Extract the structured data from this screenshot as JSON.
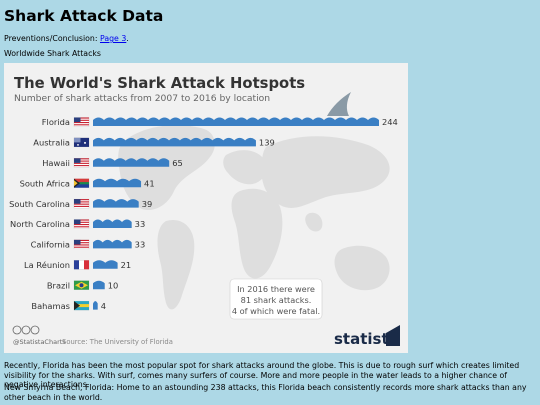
{
  "page": {
    "title": "Shark Attack Data",
    "prevention_prefix": "Preventions/Conclusion: ",
    "prevention_link": "Page 3",
    "prevention_suffix": ".",
    "section_caption": "Worldwide Shark Attacks"
  },
  "infographic": {
    "source_prefix": "Source: ",
    "source": "The University of Florida",
    "license": "@StatistaCharts",
    "brand": "statista",
    "note_lines": [
      "In 2016 there were",
      "81 shark attacks.",
      "4 of which were fatal."
    ]
  },
  "chart_data": {
    "type": "bar",
    "title": "The World's Shark Attack Hotspots",
    "subtitle": "Number of shark attacks from 2007 to 2016 by location",
    "categories": [
      "Florida",
      "Australia",
      "Hawaii",
      "South Africa",
      "South Carolina",
      "North Carolina",
      "California",
      "La Réunion",
      "Brazil",
      "Bahamas"
    ],
    "values": [
      244,
      139,
      65,
      41,
      39,
      33,
      33,
      21,
      10,
      4
    ],
    "flags": [
      "us",
      "au",
      "us",
      "za",
      "us",
      "us",
      "us",
      "fr",
      "br",
      "bs"
    ],
    "bar_color": "#3a7fc4",
    "fin_color": "#8a9aa6"
  },
  "paragraphs": [
    "Recently, Florida has been the most popular spot for shark attacks around the globe. This is due to rough surf which creates limited visibility for the sharks. With surf, comes many surfers of course. More and more people in the water leads to a higher chance of negative interactions.",
    "New Smyrna Beach, Florida: Home to an astounding 238 attacks, this Florida beach consistently records more shark attacks than any other beach in the world."
  ]
}
